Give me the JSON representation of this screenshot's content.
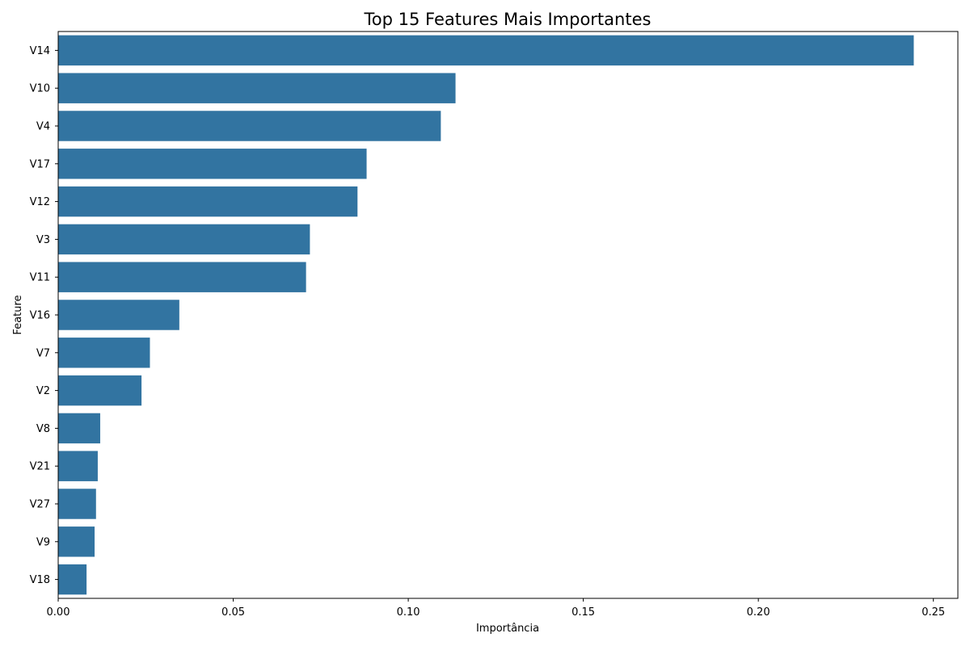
{
  "chart_data": {
    "type": "bar",
    "orientation": "horizontal",
    "title": "Top 15 Features Mais Importantes",
    "xlabel": "Importância",
    "ylabel": "Feature",
    "categories": [
      "V14",
      "V10",
      "V4",
      "V17",
      "V12",
      "V3",
      "V11",
      "V16",
      "V7",
      "V2",
      "V8",
      "V21",
      "V27",
      "V9",
      "V18"
    ],
    "values": [
      0.2444,
      0.1135,
      0.1093,
      0.0881,
      0.0855,
      0.0719,
      0.0708,
      0.0346,
      0.0262,
      0.0238,
      0.012,
      0.0113,
      0.0108,
      0.0104,
      0.0081
    ],
    "xlim": [
      0,
      0.257
    ],
    "xticks": [
      0.0,
      0.05,
      0.1,
      0.15,
      0.2,
      0.25
    ],
    "xtick_labels": [
      "0.00",
      "0.05",
      "0.10",
      "0.15",
      "0.20",
      "0.25"
    ],
    "bar_color": "#3274a1",
    "grid": false,
    "legend": "none"
  }
}
